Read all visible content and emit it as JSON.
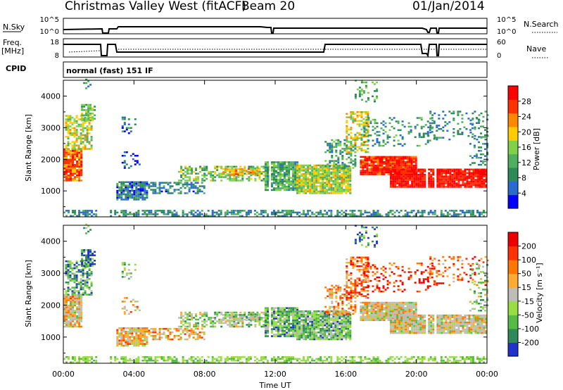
{
  "header": {
    "station": "Christmas Valley West (fitACF)",
    "beam": "Beam 20",
    "date": "01/Jan/2014"
  },
  "top_panels": {
    "nsky_label": "N.Sky",
    "nsky_ticks": [
      "10^5",
      "10^0"
    ],
    "nsearch_label": "N.Search",
    "nsearch_ticks": [
      "10^5",
      "10^0"
    ],
    "freq_label_1": "Freq.",
    "freq_label_2": "[MHz]",
    "freq_ticks": [
      "18",
      "8"
    ],
    "nave_label": "Nave",
    "nave_ticks": [
      "60",
      "0"
    ],
    "cpid_label": "CPID",
    "cpid_text": "normal (fast) 151 IF"
  },
  "chart_data": [
    {
      "type": "heatmap",
      "name": "power",
      "ylabel": "Slant Range [km]",
      "yticks": [
        1000,
        2000,
        3000,
        4000
      ],
      "ylim": [
        180,
        4500
      ],
      "xlim": [
        0,
        24
      ],
      "colorbar_label": "Power [dB]",
      "colorbar_ticks": [
        "28",
        "24",
        "20",
        "16",
        "12",
        "8",
        "4"
      ],
      "colors": [
        "#0000ff",
        "#2a6bd0",
        "#2e8b57",
        "#4fae5f",
        "#7fd14a",
        "#ffcc00",
        "#ff8800",
        "#ff3300",
        "#ff0000"
      ]
    },
    {
      "type": "heatmap",
      "name": "velocity",
      "ylabel": "Slant Range [km]",
      "yticks": [
        1000,
        2000,
        3000,
        4000
      ],
      "ylim": [
        180,
        4500
      ],
      "xlim": [
        0,
        24
      ],
      "xlabel": "Time UT",
      "xticks": [
        "00:00",
        "04:00",
        "08:00",
        "12:00",
        "16:00",
        "20:00",
        "00:00"
      ],
      "colorbar_label": "Velocity [m s⁻¹]",
      "colorbar_ticks": [
        "200",
        "100",
        "50",
        "15",
        "-15",
        "-50",
        "-100",
        "-200"
      ],
      "colors": [
        "#2233cc",
        "#2e8b57",
        "#55bb44",
        "#99dd44",
        "#bdbdb5",
        "#ffaa33",
        "#ff7700",
        "#ff3300",
        "#ee0000"
      ]
    }
  ]
}
